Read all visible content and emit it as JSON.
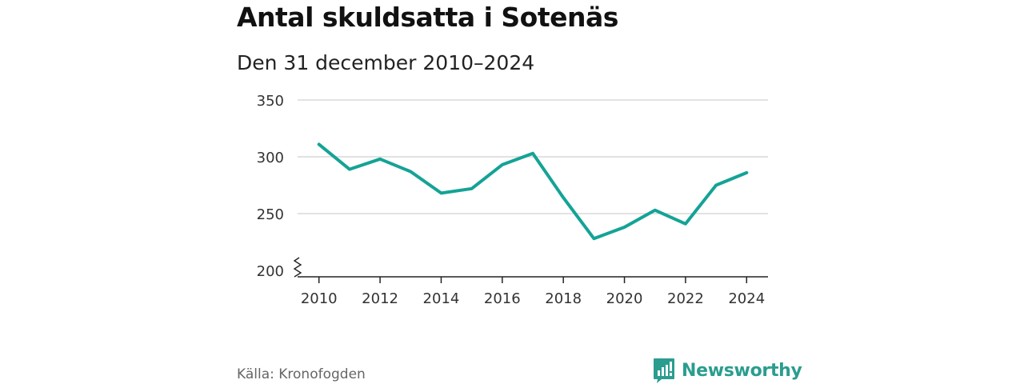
{
  "header": {
    "title": "Antal skuldsatta i Sotenäs",
    "subtitle": "Den 31 december 2010–2024"
  },
  "footer": {
    "source": "Källa: Kronofogden",
    "brand": "Newsworthy"
  },
  "colors": {
    "line": "#14a396",
    "grid": "#d9d9d9",
    "axis": "#222222",
    "brand": "#2a9d8f"
  },
  "chart_data": {
    "type": "line",
    "title": "Antal skuldsatta i Sotenäs",
    "subtitle": "Den 31 december 2010–2024",
    "xlabel": "",
    "ylabel": "",
    "x": [
      2010,
      2011,
      2012,
      2013,
      2014,
      2015,
      2016,
      2017,
      2018,
      2019,
      2020,
      2021,
      2022,
      2023,
      2024
    ],
    "series": [
      {
        "name": "Antal skuldsatta",
        "values": [
          311,
          289,
          298,
          287,
          268,
          272,
          293,
          303,
          264,
          228,
          238,
          253,
          241,
          275,
          286
        ]
      }
    ],
    "ylim": [
      200,
      350
    ],
    "xlim": [
      2009.3,
      2024.7
    ],
    "y_ticks": [
      200,
      250,
      300,
      350
    ],
    "x_ticks": [
      2010,
      2012,
      2014,
      2016,
      2018,
      2020,
      2022,
      2024
    ],
    "y_tick_labels": [
      "200",
      "250",
      "300",
      "350"
    ],
    "x_tick_labels": [
      "2010",
      "2012",
      "2014",
      "2016",
      "2018",
      "2020",
      "2022",
      "2024"
    ],
    "grid": true,
    "axis_break": true,
    "legend": "none",
    "source": "Källa: Kronofogden"
  }
}
